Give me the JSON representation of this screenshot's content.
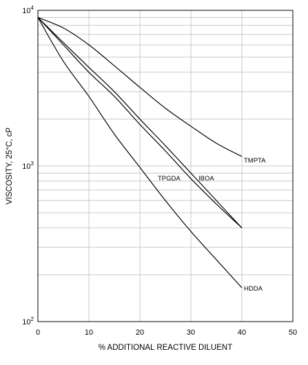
{
  "chart_data": {
    "type": "line",
    "xlabel": "% ADDITIONAL REACTIVE DILUENT",
    "ylabel": "VISCOSITY, 25°C, cP",
    "x_scale": "linear",
    "y_scale": "log",
    "xlim": [
      0,
      50
    ],
    "ylim": [
      100,
      10000
    ],
    "grid": true,
    "x_ticks": [
      "0",
      "10",
      "20",
      "30",
      "40",
      "50"
    ],
    "y_ticks": [
      {
        "base": "10",
        "exp": "2",
        "value": 100
      },
      {
        "base": "10",
        "exp": "3",
        "value": 1000
      },
      {
        "base": "10",
        "exp": "4",
        "value": 10000
      }
    ],
    "series": [
      {
        "name": "TMPTA",
        "x": [
          0,
          5,
          10,
          15,
          20,
          25,
          30,
          35,
          40
        ],
        "y": [
          9000,
          7700,
          6000,
          4400,
          3200,
          2350,
          1800,
          1400,
          1150
        ]
      },
      {
        "name": "IBOA",
        "x": [
          0,
          5,
          10,
          15,
          20,
          25,
          30,
          35,
          40
        ],
        "y": [
          9000,
          6200,
          4300,
          3000,
          2000,
          1350,
          900,
          600,
          400
        ]
      },
      {
        "name": "TPGDA",
        "x": [
          0,
          5,
          10,
          15,
          20,
          25,
          30,
          35,
          40
        ],
        "y": [
          9000,
          6000,
          4000,
          2800,
          1850,
          1250,
          830,
          570,
          400
        ]
      },
      {
        "name": "HDDA",
        "x": [
          0,
          5,
          10,
          15,
          20,
          25,
          30,
          35,
          40
        ],
        "y": [
          9000,
          4700,
          2800,
          1600,
          980,
          600,
          380,
          250,
          165
        ]
      }
    ]
  }
}
